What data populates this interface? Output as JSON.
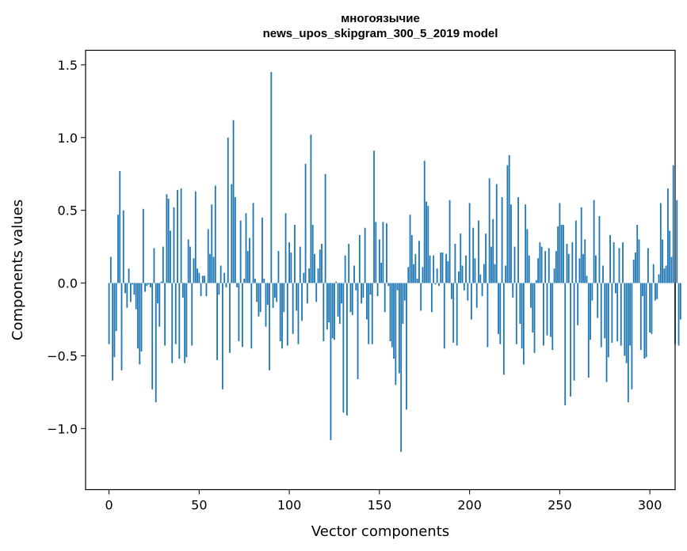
{
  "chart_data": {
    "type": "bar",
    "title": "многоязычие\nnews_upos_skipgram_300_5_2019 model",
    "title_lines": [
      "многоязычие",
      "news_upos_skipgram_300_5_2019 model"
    ],
    "xlabel": "Vector components",
    "ylabel": "Components values",
    "xlim": [
      -13,
      314
    ],
    "ylim": [
      -1.42,
      1.6
    ],
    "xticks": [
      0,
      50,
      100,
      150,
      200,
      250,
      300
    ],
    "xtick_labels": [
      "0",
      "50",
      "100",
      "150",
      "200",
      "250",
      "300"
    ],
    "yticks": [
      -1.0,
      -0.5,
      0.0,
      0.5,
      1.0,
      1.5
    ],
    "ytick_labels": [
      "−1.0",
      "−0.5",
      "0.0",
      "0.5",
      "1.0",
      "1.5"
    ],
    "grid": false,
    "bar_color": "#1f77b4",
    "values": [
      -0.42,
      0.18,
      -0.67,
      -0.51,
      -0.33,
      0.47,
      0.77,
      -0.6,
      0.5,
      -0.07,
      -0.17,
      0.1,
      -0.13,
      -0.01,
      -0.08,
      -0.18,
      -0.45,
      -0.56,
      -0.47,
      0.51,
      -0.06,
      -0.02,
      -0.01,
      -0.03,
      -0.73,
      0.24,
      -0.82,
      -0.14,
      -0.3,
      0.01,
      0.25,
      -0.43,
      0.61,
      0.58,
      0.36,
      -0.55,
      0.52,
      -0.42,
      0.64,
      -0.52,
      0.65,
      -0.1,
      -0.55,
      -0.51,
      0.3,
      0.25,
      -0.43,
      0.17,
      0.63,
      0.1,
      0.07,
      -0.09,
      0.05,
      0.05,
      -0.09,
      0.37,
      0.2,
      0.54,
      0.18,
      0.67,
      -0.53,
      -0.08,
      0.12,
      -0.73,
      0.07,
      -0.03,
      1.0,
      -0.48,
      0.68,
      1.12,
      0.59,
      -0.03,
      -0.4,
      0.43,
      -0.44,
      0.03,
      0.48,
      0.22,
      0.31,
      -0.45,
      0.55,
      0.03,
      -0.13,
      -0.23,
      -0.2,
      0.45,
      0.03,
      -0.3,
      -0.15,
      -0.6,
      1.45,
      -0.17,
      -0.1,
      -0.13,
      0.22,
      -0.4,
      -0.45,
      -0.2,
      0.48,
      -0.43,
      0.28,
      0.21,
      -0.35,
      0.4,
      -0.19,
      -0.42,
      0.25,
      -0.26,
      0.07,
      0.82,
      -0.14,
      0.1,
      1.02,
      0.4,
      0.2,
      -0.13,
      0.1,
      0.23,
      0.27,
      -0.4,
      0.75,
      -0.32,
      -0.27,
      -1.08,
      -0.38,
      -0.39,
      0.01,
      -0.23,
      -0.28,
      -0.14,
      -0.89,
      0.19,
      -0.91,
      0.27,
      -0.2,
      -0.22,
      0.12,
      -0.05,
      -0.66,
      0.33,
      -0.14,
      -0.1,
      0.38,
      -0.25,
      -0.42,
      -0.08,
      -0.42,
      0.91,
      0.42,
      -0.09,
      0.3,
      0.14,
      0.42,
      -0.2,
      0.41,
      -0.02,
      -0.4,
      -0.44,
      -0.52,
      -0.7,
      -0.05,
      -0.62,
      -1.16,
      -0.28,
      -0.12,
      -0.87,
      0.11,
      0.47,
      0.33,
      0.13,
      0.2,
      0.03,
      0.29,
      -0.19,
      0.11,
      0.84,
      0.56,
      0.53,
      0.19,
      -0.2,
      0.19,
      -0.01,
      0.1,
      -0.02,
      0.21,
      0.21,
      -0.45,
      0.2,
      0.15,
      0.57,
      -0.11,
      -0.41,
      0.27,
      -0.43,
      0.08,
      0.34,
      0.12,
      -0.05,
      0.19,
      -0.12,
      0.55,
      -0.25,
      0.38,
      0.17,
      -0.17,
      0.43,
      0.06,
      -0.09,
      0.13,
      0.34,
      -0.44,
      0.72,
      0.25,
      0.44,
      0.13,
      0.68,
      -0.35,
      -0.42,
      0.59,
      -0.63,
      0.12,
      0.81,
      0.88,
      0.54,
      -0.1,
      0.25,
      -0.42,
      0.59,
      -0.28,
      -0.45,
      -0.56,
      0.54,
      0.37,
      0.19,
      -0.17,
      -0.34,
      -0.48,
      0.02,
      0.17,
      0.28,
      0.25,
      -0.43,
      0.22,
      -0.36,
      0.24,
      -0.37,
      -0.46,
      0.1,
      0.22,
      0.39,
      0.55,
      0.4,
      0.4,
      -0.84,
      0.27,
      0.2,
      -0.78,
      0.28,
      -0.67,
      0.43,
      -0.29,
      0.17,
      0.52,
      0.2,
      0.3,
      0.05,
      -0.65,
      -0.39,
      -0.12,
      0.57,
      0.19,
      -0.24,
      0.46,
      -0.44,
      0.12,
      -0.38,
      -0.68,
      -0.51,
      0.33,
      -0.41,
      0.28,
      -0.07,
      -0.4,
      0.24,
      -0.43,
      0.28,
      -0.5,
      -0.55,
      -0.82,
      -0.43,
      -0.73,
      0.16,
      0.21,
      0.4,
      0.3,
      -0.46,
      -0.09,
      -0.52,
      -0.51,
      0.24,
      -0.34,
      -0.35,
      0.13,
      -0.12,
      -0.11,
      0.06,
      0.55,
      0.3,
      0.1,
      0.12,
      0.65,
      0.36,
      0.18,
      0.81,
      -0.42,
      0.57,
      -0.43,
      -0.25
    ]
  }
}
